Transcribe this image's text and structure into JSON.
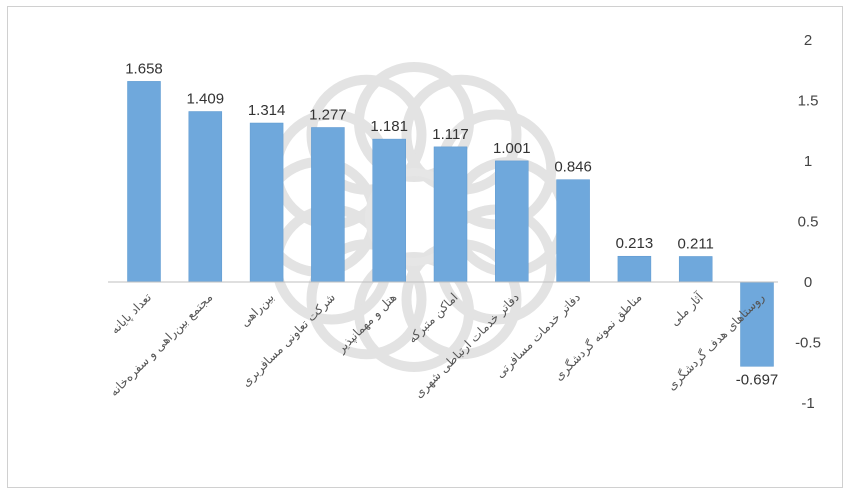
{
  "chart_data": {
    "type": "bar",
    "title": "",
    "xlabel": "",
    "ylabel": "",
    "ylim": [
      -1,
      2
    ],
    "yticks": [
      2,
      1.5,
      1,
      0.5,
      0,
      -0.5,
      -1
    ],
    "ytick_labels": [
      "2",
      "1.5",
      "1",
      "0.5",
      "0",
      "-0.5",
      "-1"
    ],
    "y_axis_side": "right",
    "grid": false,
    "legend": "none",
    "bar_color": "#6fa8dc",
    "categories": [
      "تعداد پایانه",
      "مجتمع بین‌راهی و سفره‌خانه",
      "بین‌راهی",
      "شرکت تعاونی مسافربری",
      "هتل و مهمانپذیر",
      "اماکن متبرکه",
      "دفاتر خدمات ارتباطی شهری",
      "دفاتر خدمات مسافرتی",
      "مناطق نمونه گردشگری",
      "آثار ملی",
      "روستاهای هدف گردشگری"
    ],
    "values": [
      1.658,
      1.409,
      1.314,
      1.277,
      1.181,
      1.117,
      1.001,
      0.846,
      0.213,
      0.211,
      -0.697
    ],
    "value_labels": [
      "1.658",
      "1.409",
      "1.314",
      "1.277",
      "1.181",
      "1.117",
      "1.001",
      "0.846",
      "0.213",
      "0.211",
      "-0.697"
    ]
  }
}
